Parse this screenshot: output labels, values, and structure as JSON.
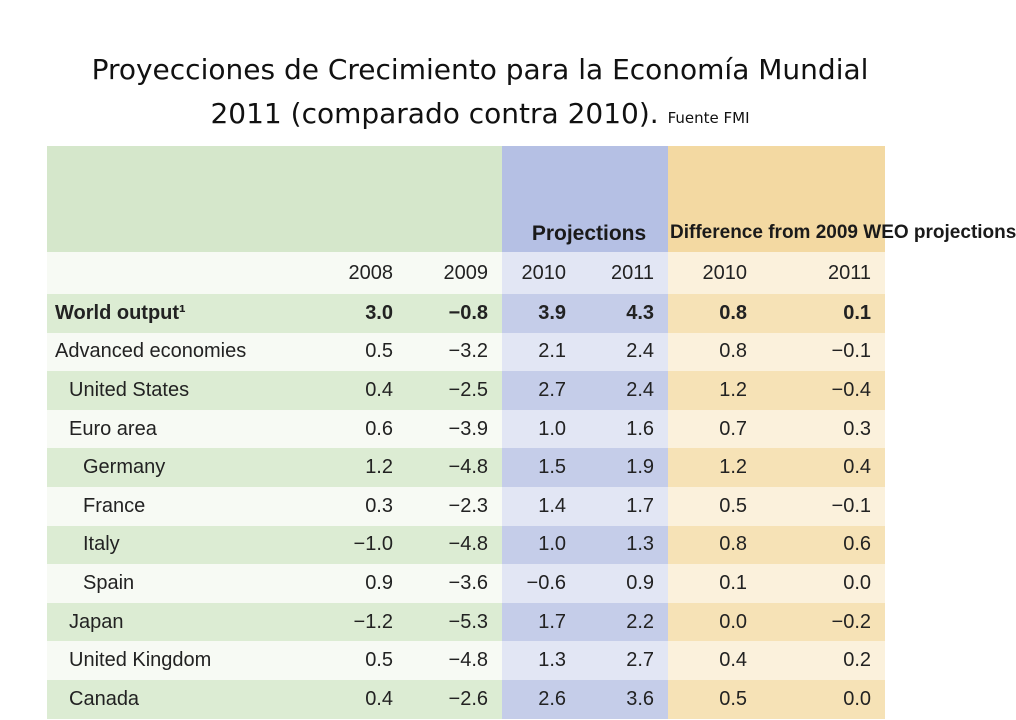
{
  "title": {
    "line1": "Proyecciones de Crecimiento para la Economía Mundial",
    "line2": "2011 (comparado contra 2010).",
    "source": "Fuente FMI"
  },
  "table": {
    "group_headers": {
      "projections": "Projections",
      "difference": "Difference from 2009 WEO projections"
    },
    "years": [
      "2008",
      "2009",
      "2010",
      "2011",
      "2010",
      "2011"
    ],
    "rows": [
      {
        "label": "World output¹",
        "values": [
          "3.0",
          "−0.8",
          "3.9",
          "4.3",
          "0.8",
          "0.1"
        ]
      },
      {
        "label": "Advanced economies",
        "values": [
          "0.5",
          "−3.2",
          "2.1",
          "2.4",
          "0.8",
          "−0.1"
        ]
      },
      {
        "label": "United States",
        "values": [
          "0.4",
          "−2.5",
          "2.7",
          "2.4",
          "1.2",
          "−0.4"
        ]
      },
      {
        "label": "Euro area",
        "values": [
          "0.6",
          "−3.9",
          "1.0",
          "1.6",
          "0.7",
          "0.3"
        ]
      },
      {
        "label": "Germany",
        "values": [
          "1.2",
          "−4.8",
          "1.5",
          "1.9",
          "1.2",
          "0.4"
        ]
      },
      {
        "label": "France",
        "values": [
          "0.3",
          "−2.3",
          "1.4",
          "1.7",
          "0.5",
          "−0.1"
        ]
      },
      {
        "label": "Italy",
        "values": [
          "−1.0",
          "−4.8",
          "1.0",
          "1.3",
          "0.8",
          "0.6"
        ]
      },
      {
        "label": "Spain",
        "values": [
          "0.9",
          "−3.6",
          "−0.6",
          "0.9",
          "0.1",
          "0.0"
        ]
      },
      {
        "label": "Japan",
        "values": [
          "−1.2",
          "−5.3",
          "1.7",
          "2.2",
          "0.0",
          "−0.2"
        ]
      },
      {
        "label": "United Kingdom",
        "values": [
          "0.5",
          "−4.8",
          "1.3",
          "2.7",
          "0.4",
          "0.2"
        ]
      },
      {
        "label": "Canada",
        "values": [
          "0.4",
          "−2.6",
          "2.6",
          "3.6",
          "0.5",
          "0.0"
        ]
      }
    ]
  }
}
